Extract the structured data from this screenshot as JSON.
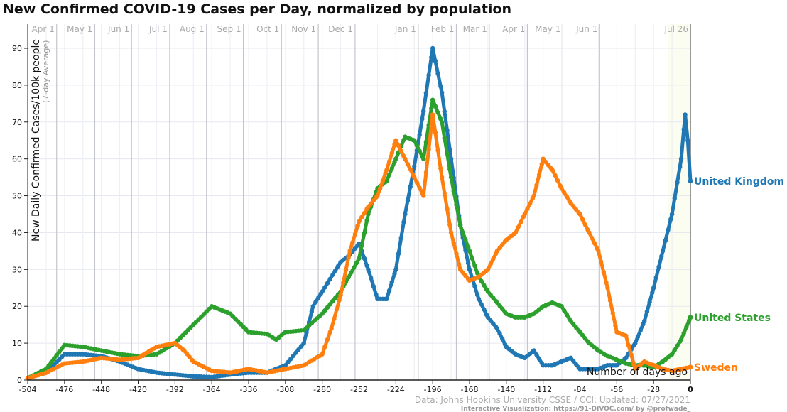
{
  "chart_data": {
    "type": "line",
    "title": "New Confirmed COVID-19 Cases per Day, normalized by population",
    "xlabel": "Number of days ago",
    "ylabel": "New Daily Confirmed Cases/100k people",
    "ylabel_sub": "(7-day Average)",
    "xlim": [
      -504,
      0
    ],
    "ylim": [
      0,
      90
    ],
    "xticks": [
      -504,
      -476,
      -448,
      -420,
      -392,
      -364,
      -336,
      -308,
      -280,
      -252,
      -224,
      -196,
      -168,
      -140,
      -112,
      -84,
      -56,
      -28,
      0
    ],
    "yticks": [
      0,
      10,
      20,
      30,
      40,
      50,
      60,
      70,
      80,
      90
    ],
    "grid": true,
    "month_markers": [
      {
        "label": "Apr 1",
        "day": -482
      },
      {
        "label": "May 1",
        "day": -453
      },
      {
        "label": "Jun 1",
        "day": -425
      },
      {
        "label": "Jul 1",
        "day": -396
      },
      {
        "label": "Aug 1",
        "day": -368
      },
      {
        "label": "Sep 1",
        "day": -340
      },
      {
        "label": "Oct 1",
        "day": -311
      },
      {
        "label": "Nov 1",
        "day": -283
      },
      {
        "label": "Dec 1",
        "day": -255
      },
      {
        "label": "Jan 1",
        "day": -207
      },
      {
        "label": "Feb 1",
        "day": -178
      },
      {
        "label": "Mar 1",
        "day": -153
      },
      {
        "label": "Apr 1",
        "day": -124
      },
      {
        "label": "May 1",
        "day": -97
      },
      {
        "label": "Jun 1",
        "day": -69
      },
      {
        "label": "Jul 26",
        "day": 0
      }
    ],
    "series": [
      {
        "name": "United Kingdom",
        "color": "#1f77b4",
        "x": [
          -504,
          -490,
          -476,
          -462,
          -448,
          -434,
          -420,
          -406,
          -392,
          -378,
          -364,
          -350,
          -336,
          -322,
          -308,
          -294,
          -287,
          -280,
          -266,
          -259,
          -252,
          -245,
          -238,
          -231,
          -224,
          -217,
          -210,
          -203,
          -196,
          -189,
          -182,
          -175,
          -168,
          -161,
          -154,
          -147,
          -140,
          -133,
          -126,
          -119,
          -112,
          -105,
          -98,
          -91,
          -84,
          -77,
          -70,
          -63,
          -56,
          -49,
          -42,
          -35,
          -28,
          -21,
          -14,
          -7,
          -4,
          -2,
          0
        ],
        "y": [
          0.5,
          2,
          7,
          7,
          6.5,
          5,
          3,
          2,
          1.5,
          1,
          0.8,
          1.5,
          2,
          2,
          4,
          10,
          20,
          24,
          32,
          34,
          37,
          30,
          22,
          22,
          30,
          45,
          58,
          73,
          90,
          78,
          60,
          42,
          30,
          22,
          17,
          14,
          9,
          7,
          6,
          8,
          4,
          4,
          5,
          6,
          3,
          3,
          3,
          4,
          4,
          6,
          10,
          16,
          25,
          35,
          45,
          60,
          72,
          65,
          54
        ]
      },
      {
        "name": "United States",
        "color": "#2ca02c",
        "x": [
          -504,
          -490,
          -476,
          -462,
          -448,
          -434,
          -420,
          -406,
          -392,
          -378,
          -364,
          -350,
          -336,
          -322,
          -315,
          -308,
          -294,
          -280,
          -266,
          -252,
          -245,
          -238,
          -231,
          -224,
          -217,
          -210,
          -203,
          -196,
          -189,
          -182,
          -175,
          -168,
          -161,
          -154,
          -147,
          -140,
          -133,
          -126,
          -119,
          -112,
          -105,
          -98,
          -91,
          -84,
          -77,
          -70,
          -63,
          -56,
          -49,
          -42,
          -35,
          -28,
          -21,
          -14,
          -7,
          0
        ],
        "y": [
          0.5,
          3,
          9.5,
          9,
          8,
          7,
          6.5,
          7,
          10,
          15,
          20,
          18,
          13,
          12.5,
          11,
          13,
          13.5,
          18,
          24,
          33,
          45,
          52,
          54,
          60,
          66,
          65,
          60,
          76,
          70,
          55,
          42,
          35,
          28,
          24,
          21,
          18,
          17,
          17,
          18,
          20,
          21,
          20,
          16,
          13,
          10,
          8,
          6.5,
          5.5,
          4.5,
          4,
          4,
          3.5,
          5,
          7,
          11,
          17
        ]
      },
      {
        "name": "Sweden",
        "color": "#ff7f0e",
        "x": [
          -504,
          -490,
          -476,
          -462,
          -448,
          -434,
          -420,
          -406,
          -392,
          -385,
          -378,
          -364,
          -350,
          -336,
          -322,
          -308,
          -294,
          -280,
          -273,
          -266,
          -259,
          -252,
          -245,
          -238,
          -231,
          -224,
          -217,
          -210,
          -203,
          -196,
          -189,
          -182,
          -175,
          -168,
          -161,
          -154,
          -147,
          -140,
          -133,
          -126,
          -119,
          -112,
          -105,
          -98,
          -91,
          -84,
          -77,
          -70,
          -63,
          -56,
          -49,
          -42,
          -35,
          -28,
          -21,
          -14,
          -7,
          0
        ],
        "y": [
          0.5,
          2,
          4.5,
          5,
          6,
          5.5,
          6,
          9,
          10,
          8,
          5,
          2.5,
          2,
          3,
          2,
          3,
          4,
          7,
          14,
          23,
          35,
          43,
          47,
          50,
          57,
          65,
          60,
          55,
          50,
          72,
          55,
          40,
          30,
          27,
          28,
          30,
          35,
          38,
          40,
          45,
          50,
          60,
          57,
          52,
          48,
          45,
          40,
          35,
          25,
          13,
          12,
          3,
          5,
          4,
          3,
          2.5,
          3,
          3.5
        ]
      }
    ]
  },
  "source": "Data: Johns Hopkins University CSSE / CCI; Updated: 07/27/2021",
  "credit": "Interactive Visualization: https://91-DIVOC.com/ by @profwade_"
}
